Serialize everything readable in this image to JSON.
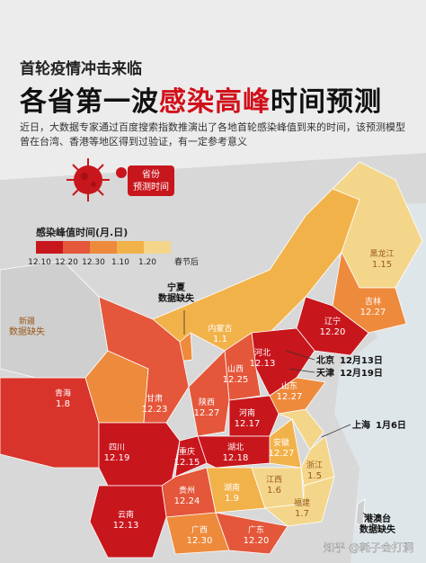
{
  "header": {
    "subtitle": "首轮疫情冲击来临",
    "title_parts": [
      "各省第一波",
      "感染高峰",
      "时间预测"
    ],
    "description": "近日，大数据专家通过百度搜索指数推演出了各地首轮感染峰值到来的时间，该预测模型曾在台湾、香港等地区得到过验证，有一定参考意义"
  },
  "badge": {
    "lines": [
      "省份",
      "预测时间"
    ]
  },
  "legend": {
    "title": "感染峰值时间(月.日)",
    "colors": [
      "#c8161d",
      "#e4573b",
      "#ee8a3c",
      "#f2b24a",
      "#f4d68a"
    ],
    "labels": [
      "12.10",
      "12.20",
      "12.30",
      "1.10",
      "1.20",
      "春节后"
    ]
  },
  "regions": [
    {
      "name": "黑龙江",
      "peak": "1.15",
      "color": "#f4d68a"
    },
    {
      "name": "吉林",
      "peak": "12.27",
      "color": "#ee8a3c"
    },
    {
      "name": "辽宁",
      "peak": "12.20",
      "color": "#c8161d"
    },
    {
      "name": "内蒙古",
      "peak": "1.1",
      "color": "#f2b24a"
    },
    {
      "name": "新疆",
      "peak": "数据缺失",
      "color": "#cfcfcf"
    },
    {
      "name": "河北",
      "peak": "12.13",
      "color": "#c8161d"
    },
    {
      "name": "山西",
      "peak": "12.25",
      "color": "#e4573b"
    },
    {
      "name": "山东",
      "peak": "12.27",
      "color": "#ee8a3c"
    },
    {
      "name": "青海",
      "peak": "1.8",
      "color": "#ee8a3c"
    },
    {
      "name": "甘肃",
      "peak": "12.23",
      "color": "#e4573b"
    },
    {
      "name": "陕西",
      "peak": "12.27",
      "color": "#e4573b"
    },
    {
      "name": "河南",
      "peak": "12.17",
      "color": "#c8161d"
    },
    {
      "name": "安徽",
      "peak": "12.27",
      "color": "#f2b24a"
    },
    {
      "name": "四川",
      "peak": "12.19",
      "color": "#c8161d"
    },
    {
      "name": "重庆",
      "peak": "12.15",
      "color": "#c8161d"
    },
    {
      "name": "湖北",
      "peak": "12.18",
      "color": "#c8161d"
    },
    {
      "name": "浙江",
      "peak": "1.5",
      "color": "#f4d68a"
    },
    {
      "name": "贵州",
      "peak": "12.24",
      "color": "#e4573b"
    },
    {
      "name": "湖南",
      "peak": "1.9",
      "color": "#f2b24a"
    },
    {
      "name": "江西",
      "peak": "1.6",
      "color": "#f4d68a"
    },
    {
      "name": "福建",
      "peak": "1.7",
      "color": "#f4d68a"
    },
    {
      "name": "云南",
      "peak": "12.13",
      "color": "#c8161d"
    },
    {
      "name": "广西",
      "peak": "12.30",
      "color": "#ee8a3c"
    },
    {
      "name": "广东",
      "peak": "12.20",
      "color": "#e4573b"
    }
  ],
  "callouts": [
    {
      "name": "宁夏",
      "value": "数据缺失"
    },
    {
      "name": "北京",
      "value": "12月13日"
    },
    {
      "name": "天津",
      "value": "12月19日"
    },
    {
      "name": "上海",
      "value": "1月6日"
    },
    {
      "name": "港澳台",
      "value": "数据缺失"
    }
  ],
  "watermark": "知乎 @耗子会打洞"
}
